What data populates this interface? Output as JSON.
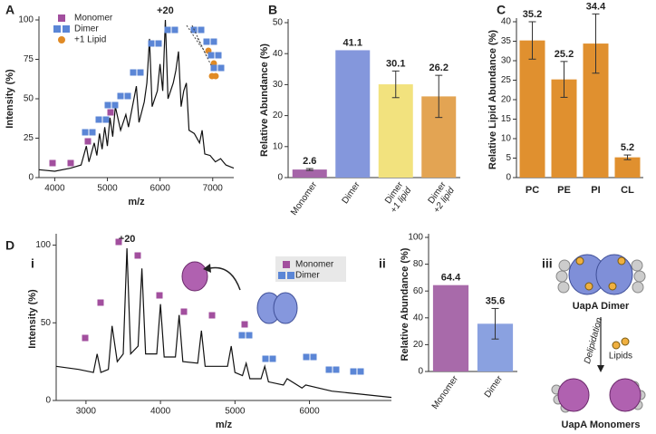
{
  "chart_data": [
    {
      "type": "line",
      "panel": "A",
      "xlabel": "m/z",
      "ylabel": "Intensity (%)",
      "xlim": [
        3700,
        7400
      ],
      "xticks": [
        4000,
        5000,
        6000,
        7000
      ],
      "ylim": [
        0,
        100
      ],
      "yticks": [
        0,
        25,
        50,
        75,
        100
      ],
      "x": [
        3700,
        4000,
        4300,
        4500,
        4600,
        4650,
        4750,
        4800,
        4850,
        4900,
        4950,
        5000,
        5050,
        5100,
        5150,
        5250,
        5350,
        5400,
        5550,
        5600,
        5700,
        5750,
        5800,
        5850,
        5950,
        6000,
        6050,
        6100,
        6150,
        6250,
        6300,
        6350,
        6400,
        6450,
        6500,
        6550,
        6650,
        6750,
        6800,
        6850,
        6950,
        7050,
        7150,
        7250,
        7400
      ],
      "series": [
        {
          "color": "#111111",
          "values": [
            5,
            4,
            6,
            8,
            20,
            10,
            22,
            14,
            28,
            18,
            32,
            20,
            38,
            26,
            45,
            30,
            40,
            32,
            58,
            35,
            48,
            60,
            88,
            45,
            55,
            72,
            55,
            100,
            50,
            60,
            68,
            80,
            45,
            55,
            60,
            30,
            28,
            22,
            30,
            15,
            14,
            10,
            12,
            8,
            6
          ]
        }
      ],
      "legend": [
        {
          "name": "Monomer",
          "color": "#a24f9e",
          "marker": "square"
        },
        {
          "name": "Dimer",
          "color": "#5b86d6",
          "marker": "double-square"
        },
        {
          "name": "+1 Lipid",
          "color": "#e08a25",
          "marker": "circle"
        }
      ],
      "annotations": [
        {
          "text": "+20",
          "x": 6100,
          "y": 100
        }
      ]
    },
    {
      "type": "bar",
      "panel": "B",
      "ylabel": "Relative Abundance (%)",
      "categories": [
        "Monomer",
        "Dimer",
        "Dimer",
        "Dimer"
      ],
      "category_sublabels": [
        null,
        null,
        "+1 lipid",
        "+2 lipid"
      ],
      "values": [
        2.6,
        41.1,
        30.1,
        26.2
      ],
      "errors": [
        0.3,
        0,
        4.3,
        6.8
      ],
      "colors": [
        "#a565a8",
        "#8497dc",
        "#f2e27e",
        "#e3a453"
      ],
      "ylim": [
        0,
        50
      ],
      "yticks": [
        0,
        10,
        20,
        30,
        40,
        50
      ]
    },
    {
      "type": "bar",
      "panel": "C",
      "ylabel": "Relative Lipid Abundance (%)",
      "categories": [
        "PC",
        "PE",
        "PI",
        "CL"
      ],
      "values": [
        35.2,
        25.2,
        34.4,
        5.2
      ],
      "errors": [
        4.8,
        4.6,
        7.6,
        0.6
      ],
      "color": "#e0902f",
      "ylim": [
        0,
        40
      ],
      "yticks": [
        0,
        5,
        10,
        15,
        20,
        25,
        30,
        35,
        40
      ]
    },
    {
      "type": "line",
      "panel": "D",
      "subpanel": "i",
      "xlabel": "m/z",
      "ylabel": "Intensity (%)",
      "xlim": [
        2600,
        7100
      ],
      "xticks": [
        3000,
        4000,
        5000,
        6000
      ],
      "ylim": [
        0,
        105
      ],
      "yticks": [
        0,
        50,
        100
      ],
      "x": [
        2600,
        2900,
        3100,
        3150,
        3200,
        3300,
        3350,
        3420,
        3500,
        3550,
        3600,
        3700,
        3750,
        3800,
        3950,
        4000,
        4050,
        4200,
        4250,
        4300,
        4500,
        4550,
        4600,
        4900,
        4950,
        5000,
        5100,
        5150,
        5200,
        5350,
        5400,
        5450,
        5650,
        5700,
        5900,
        5950,
        6300,
        6700,
        7100
      ],
      "series": [
        {
          "color": "#111111",
          "values": [
            22,
            20,
            18,
            30,
            18,
            20,
            48,
            25,
            30,
            98,
            30,
            35,
            85,
            30,
            30,
            62,
            28,
            28,
            55,
            25,
            24,
            45,
            22,
            22,
            35,
            18,
            16,
            24,
            14,
            14,
            22,
            12,
            10,
            14,
            8,
            10,
            6,
            4,
            2
          ]
        }
      ],
      "legend": [
        {
          "name": "Monomer",
          "color": "#a24f9e",
          "marker": "square"
        },
        {
          "name": "Dimer",
          "color": "#5b86d6",
          "marker": "double-square"
        }
      ],
      "annotations": [
        {
          "text": "+20",
          "x": 3550,
          "y": 98
        }
      ]
    },
    {
      "type": "bar",
      "subpanel": "ii",
      "ylabel": "Relative Abundance (%)",
      "categories": [
        "Monomer",
        "Dimer"
      ],
      "values": [
        64.4,
        35.6
      ],
      "errors": [
        0,
        11.4
      ],
      "colors": [
        "#a86aaa",
        "#8aa1e0"
      ],
      "ylim": [
        0,
        100
      ],
      "yticks": [
        0,
        20,
        40,
        60,
        80,
        100
      ]
    }
  ],
  "diagram": {
    "label": "iii",
    "top": "UapA Dimer",
    "arrow": "Delipidation",
    "side": "Lipids",
    "bottom": "UapA Monomers"
  }
}
